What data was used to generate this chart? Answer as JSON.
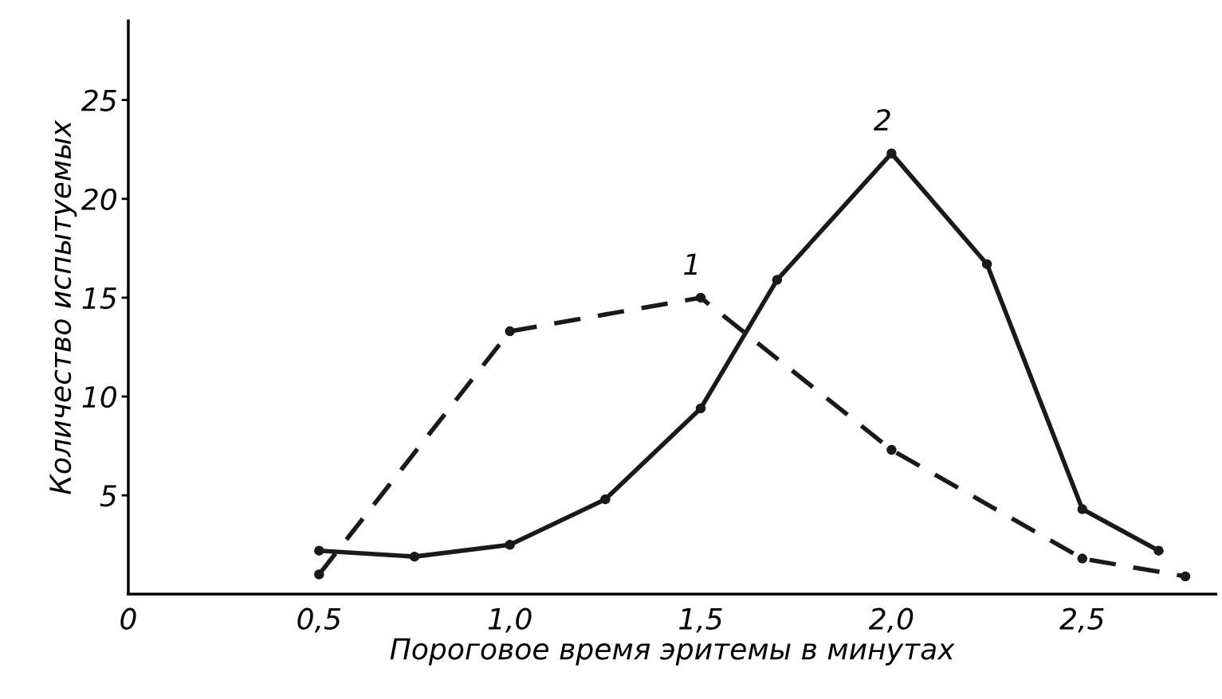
{
  "chart_data": {
    "type": "line",
    "xlabel": "Пороговое время эритемы в минутах",
    "ylabel": "Количество испытуемых",
    "xlim": [
      0,
      2.85
    ],
    "ylim": [
      0,
      29
    ],
    "xticks": [
      {
        "value": 0,
        "label": "0"
      },
      {
        "value": 0.5,
        "label": "0,5"
      },
      {
        "value": 1.0,
        "label": "1,0"
      },
      {
        "value": 1.5,
        "label": "1,5"
      },
      {
        "value": 2.0,
        "label": "2,0"
      },
      {
        "value": 2.5,
        "label": "2,5"
      }
    ],
    "yticks": [
      5,
      10,
      15,
      20,
      25
    ],
    "marker": "circle",
    "grid": false,
    "legend": false,
    "series": [
      {
        "name": "1",
        "color": "#1a1a1a",
        "line_style": "dashed",
        "x": [
          0.5,
          1.0,
          1.5,
          2.0,
          2.5,
          2.77
        ],
        "values": [
          1.0,
          13.3,
          15.0,
          7.3,
          1.8,
          0.9
        ]
      },
      {
        "name": "2",
        "color": "#1a1a1a",
        "line_style": "solid",
        "x": [
          0.5,
          0.75,
          1.0,
          1.25,
          1.5,
          1.7,
          2.0,
          2.25,
          2.5,
          2.7
        ],
        "values": [
          2.2,
          1.9,
          2.5,
          4.8,
          9.4,
          15.9,
          22.3,
          16.7,
          4.3,
          2.2
        ]
      }
    ]
  }
}
